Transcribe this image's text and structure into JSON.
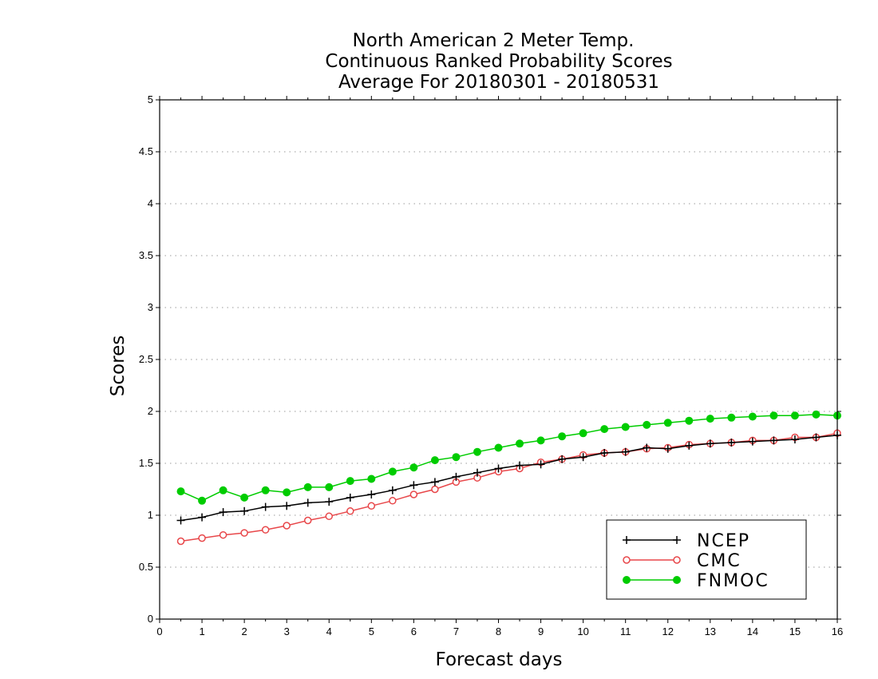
{
  "chart_data": {
    "type": "line",
    "title_lines": [
      "North American 2 Meter Temp.",
      "Continuous Ranked Probability Scores",
      "Average For 20180301 - 20180531"
    ],
    "xlabel": "Forecast days",
    "ylabel": "Scores",
    "xlim": [
      0,
      16
    ],
    "ylim": [
      0,
      5
    ],
    "xticks": [
      0,
      1,
      2,
      3,
      4,
      5,
      6,
      7,
      8,
      9,
      10,
      11,
      12,
      13,
      14,
      15,
      16
    ],
    "xtick_labels": [
      "0",
      "1",
      "2",
      "3",
      "4",
      "5",
      "6",
      "7",
      "8",
      "9",
      "10",
      "11",
      "12",
      "13",
      "14",
      "15",
      "16"
    ],
    "yticks": [
      0,
      0.5,
      1,
      1.5,
      2,
      2.5,
      3,
      3.5,
      4,
      4.5,
      5
    ],
    "ytick_labels": [
      "0",
      "0.5",
      "1",
      "1.5",
      "2",
      "2.5",
      "3",
      "3.5",
      "4",
      "4.5",
      "5"
    ],
    "grid": "horizontal dotted",
    "legend_placement": "bottom-right",
    "x": [
      0.5,
      1,
      1.5,
      2,
      2.5,
      3,
      3.5,
      4,
      4.5,
      5,
      5.5,
      6,
      6.5,
      7,
      7.5,
      8,
      8.5,
      9,
      9.5,
      10,
      10.5,
      11,
      11.5,
      12,
      12.5,
      13,
      13.5,
      14,
      14.5,
      15,
      15.5,
      16
    ],
    "series": [
      {
        "name": "NCEP",
        "color": "#000000",
        "marker": "plus",
        "values": [
          0.95,
          0.98,
          1.03,
          1.04,
          1.08,
          1.09,
          1.12,
          1.13,
          1.17,
          1.2,
          1.24,
          1.29,
          1.32,
          1.37,
          1.41,
          1.45,
          1.48,
          1.49,
          1.54,
          1.56,
          1.6,
          1.61,
          1.65,
          1.64,
          1.67,
          1.69,
          1.7,
          1.71,
          1.72,
          1.73,
          1.75,
          1.77
        ]
      },
      {
        "name": "CMC",
        "color": "#e8474a",
        "marker": "open-circle",
        "values": [
          0.75,
          0.78,
          0.81,
          0.83,
          0.86,
          0.9,
          0.95,
          0.99,
          1.04,
          1.09,
          1.14,
          1.2,
          1.25,
          1.32,
          1.36,
          1.42,
          1.45,
          1.51,
          1.54,
          1.58,
          1.6,
          1.61,
          1.64,
          1.65,
          1.68,
          1.69,
          1.7,
          1.72,
          1.72,
          1.75,
          1.75,
          1.79
        ]
      },
      {
        "name": "FNMOC",
        "color": "#00cc00",
        "marker": "filled-circle",
        "values": [
          1.23,
          1.14,
          1.24,
          1.17,
          1.24,
          1.22,
          1.27,
          1.27,
          1.33,
          1.35,
          1.42,
          1.46,
          1.53,
          1.56,
          1.61,
          1.65,
          1.69,
          1.72,
          1.76,
          1.79,
          1.83,
          1.85,
          1.87,
          1.89,
          1.91,
          1.93,
          1.94,
          1.95,
          1.96,
          1.96,
          1.97,
          1.96
        ]
      }
    ]
  }
}
